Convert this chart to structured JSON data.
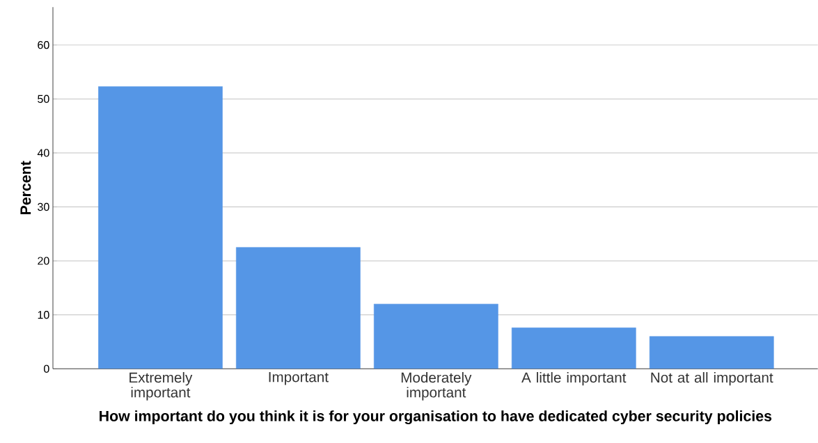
{
  "chart_data": {
    "type": "bar",
    "xlabel": "How important do you think it is for your organisation to have dedicated cyber security policies",
    "ylabel": "Percent",
    "categories": [
      "Extremely important",
      "Important",
      "Moderately important",
      "A little important",
      "Not at all important"
    ],
    "values": [
      52.3,
      22.5,
      12.0,
      7.6,
      6.0
    ],
    "color": "#5596e6",
    "ylim": [
      0,
      67
    ],
    "yticks": [
      0,
      10,
      20,
      30,
      40,
      50,
      60
    ],
    "grid": "y"
  }
}
